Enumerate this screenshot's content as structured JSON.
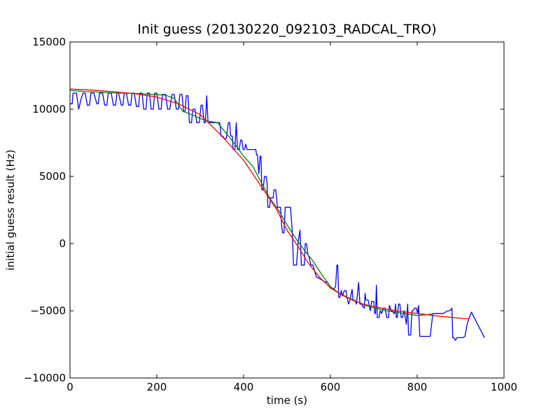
{
  "chart_data": {
    "type": "line",
    "title": "Init guess (20130220_092103_RADCAL_TRO)",
    "xlabel": "time (s)",
    "ylabel": "initial guess result (Hz)",
    "xlim": [
      0,
      1000
    ],
    "ylim": [
      -10000,
      15000
    ],
    "xticks": [
      0,
      200,
      400,
      600,
      800,
      1000
    ],
    "xtick_labels": [
      "0",
      "200",
      "400",
      "600",
      "800",
      "1000"
    ],
    "yticks": [
      -10000,
      -5000,
      0,
      5000,
      10000,
      15000
    ],
    "ytick_labels": [
      "−10000",
      "−5000",
      "0",
      "5000",
      "10000",
      "15000"
    ],
    "grid": false,
    "legend": "none",
    "series": [
      {
        "color": "#0000ff",
        "points": [
          [
            0,
            10400
          ],
          [
            5,
            10400
          ],
          [
            7,
            11200
          ],
          [
            12,
            11200
          ],
          [
            15,
            11200
          ],
          [
            20,
            10000
          ],
          [
            25,
            10700
          ],
          [
            30,
            11200
          ],
          [
            35,
            11200
          ],
          [
            40,
            10300
          ],
          [
            45,
            10300
          ],
          [
            48,
            11200
          ],
          [
            55,
            11200
          ],
          [
            62,
            10400
          ],
          [
            65,
            10400
          ],
          [
            68,
            11200
          ],
          [
            75,
            11200
          ],
          [
            80,
            10300
          ],
          [
            85,
            10300
          ],
          [
            88,
            11200
          ],
          [
            95,
            11200
          ],
          [
            100,
            10300
          ],
          [
            105,
            10300
          ],
          [
            108,
            11200
          ],
          [
            112,
            11200
          ],
          [
            118,
            10300
          ],
          [
            122,
            10300
          ],
          [
            125,
            11200
          ],
          [
            130,
            11200
          ],
          [
            135,
            10300
          ],
          [
            140,
            10300
          ],
          [
            143,
            11200
          ],
          [
            148,
            11200
          ],
          [
            153,
            10200
          ],
          [
            158,
            10200
          ],
          [
            161,
            11200
          ],
          [
            166,
            11200
          ],
          [
            170,
            10000
          ],
          [
            175,
            10000
          ],
          [
            178,
            11200
          ],
          [
            183,
            11200
          ],
          [
            187,
            10000
          ],
          [
            192,
            10000
          ],
          [
            195,
            11200
          ],
          [
            200,
            11200
          ],
          [
            205,
            10000
          ],
          [
            210,
            10000
          ],
          [
            213,
            11100
          ],
          [
            220,
            11100
          ],
          [
            225,
            10000
          ],
          [
            230,
            10000
          ],
          [
            235,
            11100
          ],
          [
            240,
            11100
          ],
          [
            245,
            10000
          ],
          [
            250,
            10000
          ],
          [
            253,
            11100
          ],
          [
            258,
            11100
          ],
          [
            262,
            9800
          ],
          [
            265,
            9800
          ],
          [
            268,
            11000
          ],
          [
            272,
            11000
          ],
          [
            275,
            9000
          ],
          [
            280,
            9000
          ],
          [
            283,
            10000
          ],
          [
            288,
            10000
          ],
          [
            292,
            9000
          ],
          [
            298,
            9000
          ],
          [
            302,
            10300
          ],
          [
            305,
            10300
          ],
          [
            309,
            9000
          ],
          [
            312,
            9000
          ],
          [
            315,
            11000
          ],
          [
            318,
            9000
          ],
          [
            330,
            9000
          ],
          [
            335,
            9000
          ],
          [
            340,
            9000
          ],
          [
            345,
            9000
          ],
          [
            348,
            8000
          ],
          [
            352,
            8000
          ],
          [
            356,
            7800
          ],
          [
            360,
            7800
          ],
          [
            365,
            9000
          ],
          [
            368,
            9000
          ],
          [
            370,
            8000
          ],
          [
            374,
            8000
          ],
          [
            376,
            7000
          ],
          [
            380,
            7000
          ],
          [
            383,
            9000
          ],
          [
            386,
            7000
          ],
          [
            390,
            7000
          ],
          [
            393,
            7700
          ],
          [
            396,
            7700
          ],
          [
            399,
            7000
          ],
          [
            402,
            7000
          ],
          [
            405,
            7400
          ],
          [
            408,
            7000
          ],
          [
            420,
            7000
          ],
          [
            428,
            7000
          ],
          [
            430,
            6600
          ],
          [
            432,
            6600
          ],
          [
            435,
            5200
          ],
          [
            438,
            6500
          ],
          [
            440,
            6500
          ],
          [
            442,
            4000
          ],
          [
            445,
            4000
          ],
          [
            448,
            5000
          ],
          [
            452,
            5000
          ],
          [
            454,
            4500
          ],
          [
            456,
            2700
          ],
          [
            460,
            2700
          ],
          [
            462,
            3400
          ],
          [
            465,
            3400
          ],
          [
            468,
            3400
          ],
          [
            470,
            4000
          ],
          [
            474,
            4000
          ],
          [
            478,
            2700
          ],
          [
            485,
            2700
          ],
          [
            488,
            1200
          ],
          [
            490,
            800
          ],
          [
            493,
            800
          ],
          [
            496,
            2700
          ],
          [
            500,
            2700
          ],
          [
            505,
            2700
          ],
          [
            508,
            2700
          ],
          [
            512,
            1000
          ],
          [
            515,
            -1600
          ],
          [
            520,
            -1600
          ],
          [
            522,
            -1600
          ],
          [
            526,
            200
          ],
          [
            530,
            1000
          ],
          [
            533,
            -1600
          ],
          [
            536,
            -1600
          ],
          [
            540,
            -1600
          ],
          [
            542,
            0
          ],
          [
            545,
            0
          ],
          [
            548,
            -800
          ],
          [
            550,
            -900
          ],
          [
            555,
            -1600
          ],
          [
            560,
            -1600
          ],
          [
            563,
            -2000
          ],
          [
            568,
            -2500
          ],
          [
            575,
            -2600
          ],
          [
            580,
            -2700
          ],
          [
            585,
            -2800
          ],
          [
            590,
            -2900
          ],
          [
            592,
            -2800
          ],
          [
            595,
            -3000
          ],
          [
            600,
            -3200
          ],
          [
            605,
            -3400
          ],
          [
            610,
            -3300
          ],
          [
            612,
            -3200
          ],
          [
            615,
            -1600
          ],
          [
            617,
            -1600
          ],
          [
            619,
            -4000
          ],
          [
            622,
            -4000
          ],
          [
            625,
            -3500
          ],
          [
            628,
            -3900
          ],
          [
            632,
            -3500
          ],
          [
            636,
            -3500
          ],
          [
            638,
            -4000
          ],
          [
            642,
            -4500
          ],
          [
            645,
            -4200
          ],
          [
            650,
            -3400
          ],
          [
            652,
            -4200
          ],
          [
            656,
            -4200
          ],
          [
            660,
            -4500
          ],
          [
            665,
            -2900
          ],
          [
            668,
            -4500
          ],
          [
            672,
            -4500
          ],
          [
            675,
            -4700
          ],
          [
            678,
            -4800
          ],
          [
            680,
            -3700
          ],
          [
            682,
            -4200
          ],
          [
            687,
            -4200
          ],
          [
            692,
            -5000
          ],
          [
            695,
            -4300
          ],
          [
            700,
            -4300
          ],
          [
            702,
            -5200
          ],
          [
            704,
            -5200
          ],
          [
            706,
            -3100
          ],
          [
            708,
            -5500
          ],
          [
            712,
            -5500
          ],
          [
            715,
            -5000
          ],
          [
            718,
            -5200
          ],
          [
            722,
            -4800
          ],
          [
            726,
            -4800
          ],
          [
            730,
            -5500
          ],
          [
            734,
            -5500
          ],
          [
            736,
            -4600
          ],
          [
            740,
            -5000
          ],
          [
            743,
            -5000
          ],
          [
            746,
            -5200
          ],
          [
            748,
            -5200
          ],
          [
            750,
            -4500
          ],
          [
            752,
            -5500
          ],
          [
            754,
            -5500
          ],
          [
            757,
            -4500
          ],
          [
            760,
            -4500
          ],
          [
            763,
            -5500
          ],
          [
            766,
            -5500
          ],
          [
            770,
            -5000
          ],
          [
            775,
            -6000
          ],
          [
            778,
            -4500
          ],
          [
            780,
            -6800
          ],
          [
            785,
            -6800
          ],
          [
            788,
            -5000
          ],
          [
            790,
            -5000
          ],
          [
            794,
            -4800
          ],
          [
            798,
            -4800
          ],
          [
            801,
            -5200
          ],
          [
            803,
            -4600
          ],
          [
            806,
            -6900
          ],
          [
            810,
            -6900
          ],
          [
            815,
            -6900
          ],
          [
            820,
            -6900
          ],
          [
            825,
            -6900
          ],
          [
            830,
            -6900
          ],
          [
            836,
            -5200
          ],
          [
            845,
            -5200
          ],
          [
            850,
            -5200
          ],
          [
            855,
            -5200
          ],
          [
            860,
            -5200
          ],
          [
            865,
            -5100
          ],
          [
            870,
            -5000
          ],
          [
            875,
            -5000
          ],
          [
            880,
            -4800
          ],
          [
            882,
            -7000
          ],
          [
            885,
            -7000
          ],
          [
            888,
            -7200
          ],
          [
            892,
            -7000
          ],
          [
            900,
            -7000
          ],
          [
            905,
            -7000
          ],
          [
            910,
            -6900
          ],
          [
            915,
            -6000
          ],
          [
            920,
            -5500
          ],
          [
            925,
            -5100
          ],
          [
            955,
            -7000
          ]
        ]
      },
      {
        "color": "#008000",
        "points": [
          [
            0,
            11400
          ],
          [
            20,
            11350
          ],
          [
            40,
            11300
          ],
          [
            60,
            11280
          ],
          [
            80,
            11250
          ],
          [
            100,
            11220
          ],
          [
            120,
            11200
          ],
          [
            140,
            11180
          ],
          [
            160,
            11150
          ],
          [
            180,
            11120
          ],
          [
            200,
            11080
          ],
          [
            220,
            11050
          ],
          [
            240,
            10800
          ],
          [
            260,
            9850
          ],
          [
            280,
            9600
          ],
          [
            300,
            9300
          ],
          [
            320,
            9100
          ],
          [
            340,
            9000
          ],
          [
            360,
            8200
          ],
          [
            380,
            7400
          ],
          [
            400,
            6500
          ],
          [
            420,
            5800
          ],
          [
            440,
            4600
          ],
          [
            460,
            3400
          ],
          [
            480,
            2500
          ],
          [
            500,
            1400
          ],
          [
            520,
            400
          ],
          [
            540,
            -500
          ],
          [
            560,
            -1300
          ],
          [
            580,
            -2300
          ],
          [
            600,
            -3200
          ],
          [
            620,
            -3700
          ],
          [
            640,
            -4000
          ],
          [
            660,
            -4300
          ],
          [
            680,
            -4600
          ],
          [
            700,
            -4750
          ],
          [
            720,
            -4950
          ],
          [
            740,
            -5050
          ],
          [
            760,
            -5150
          ],
          [
            780,
            -5250
          ],
          [
            800,
            -5350
          ],
          [
            820,
            -5300
          ],
          [
            840,
            -5200
          ]
        ]
      },
      {
        "color": "#ff0000",
        "points": [
          [
            0,
            11500
          ],
          [
            50,
            11420
          ],
          [
            100,
            11300
          ],
          [
            150,
            11150
          ],
          [
            200,
            10900
          ],
          [
            250,
            10400
          ],
          [
            300,
            9600
          ],
          [
            350,
            8000
          ],
          [
            400,
            6200
          ],
          [
            450,
            3800
          ],
          [
            475,
            2600
          ],
          [
            500,
            1000
          ],
          [
            525,
            -200
          ],
          [
            550,
            -1500
          ],
          [
            575,
            -2500
          ],
          [
            600,
            -3300
          ],
          [
            625,
            -3800
          ],
          [
            650,
            -4200
          ],
          [
            675,
            -4500
          ],
          [
            700,
            -4700
          ],
          [
            750,
            -5000
          ],
          [
            800,
            -5200
          ],
          [
            850,
            -5400
          ],
          [
            900,
            -5550
          ],
          [
            920,
            -5600
          ]
        ]
      }
    ]
  }
}
